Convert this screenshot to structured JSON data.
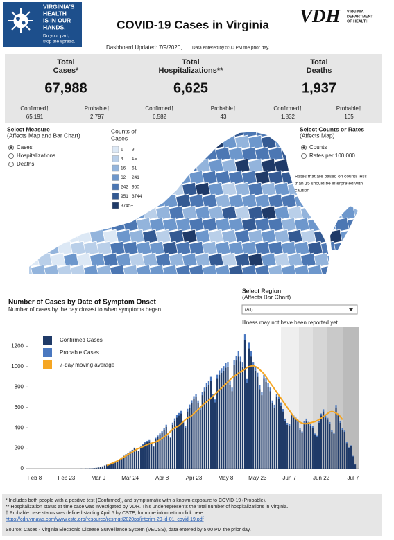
{
  "header": {
    "logo_lines": [
      "VIRGINIA'S",
      "HEALTH",
      "IS IN OUR",
      "HANDS."
    ],
    "logo_tagline": [
      "Do your part,",
      "stop the spread."
    ],
    "title": "COVID-19 Cases in Virginia",
    "agency_abbr": "VDH",
    "agency_name": [
      "VIRGINIA",
      "DEPARTMENT",
      "OF HEALTH"
    ]
  },
  "updated": {
    "label": "Dashboard Updated: 7/9/2020,",
    "note": "Data entered by 5:00 PM the prior day."
  },
  "totals": [
    {
      "label": [
        "Total",
        "Cases*"
      ],
      "value": "67,988",
      "confirmed_label": "Confirmed†",
      "confirmed": "65,191",
      "probable_label": "Probable†",
      "probable": "2,797"
    },
    {
      "label": [
        "Total",
        "Hospitalizations**"
      ],
      "value": "6,625",
      "confirmed_label": "Confirmed†",
      "confirmed": "6,582",
      "probable_label": "Probable†",
      "probable": "43"
    },
    {
      "label": [
        "Total",
        "Deaths"
      ],
      "value": "1,937",
      "confirmed_label": "Confirmed†",
      "confirmed": "1,832",
      "probable_label": "Probable†",
      "probable": "105"
    }
  ],
  "measure": {
    "title": "Select Measure",
    "subtitle": "(Affects Map and Bar Chart)",
    "options": [
      "Cases",
      "Hospitalizations",
      "Deaths"
    ],
    "selected": 0
  },
  "legend": {
    "title": [
      "Counts of",
      "Cases"
    ],
    "bins": [
      {
        "low": "1",
        "high": "3",
        "color": "#dce8f5"
      },
      {
        "low": "4",
        "high": "15",
        "color": "#b9cfe9"
      },
      {
        "low": "16",
        "high": "61",
        "color": "#93b4dc"
      },
      {
        "low": "62",
        "high": "241",
        "color": "#6d97cc"
      },
      {
        "low": "242",
        "high": "950",
        "color": "#4c77b3"
      },
      {
        "low": "951",
        "high": "3744",
        "color": "#345a93"
      },
      {
        "low": "3745+",
        "color": "#1f3a68"
      }
    ]
  },
  "rate": {
    "title": "Select Counts or Rates",
    "subtitle": "(Affects Map)",
    "options": [
      "Counts",
      "Rates per 100,000"
    ],
    "selected": 0,
    "note": [
      "Rates that are based on counts less",
      "than 15 should be interpreted with",
      "caution"
    ]
  },
  "region": {
    "title": "Select Region",
    "subtitle": "(Affects Bar Chart)",
    "value": "(All)"
  },
  "chart_data": {
    "type": "bar",
    "stacked": true,
    "title": "Number of Cases by Date of Symptom Onset",
    "subtitle": "Number of cases by the day closest to when symptoms began.",
    "note": "Illness may not have been reported yet.",
    "categories": [
      "Feb 8",
      null,
      null,
      null,
      null,
      null,
      null,
      null,
      null,
      null,
      null,
      null,
      null,
      null,
      null,
      "Feb 23",
      null,
      null,
      null,
      null,
      null,
      null,
      null,
      null,
      null,
      null,
      null,
      null,
      null,
      null,
      "Mar 9",
      null,
      null,
      null,
      null,
      null,
      null,
      null,
      null,
      null,
      null,
      null,
      null,
      null,
      null,
      "Mar 24",
      null,
      null,
      null,
      null,
      null,
      null,
      null,
      null,
      null,
      null,
      null,
      null,
      null,
      null,
      "Apr 8",
      null,
      null,
      null,
      null,
      null,
      null,
      null,
      null,
      null,
      null,
      null,
      null,
      null,
      null,
      "Apr 23",
      null,
      null,
      null,
      null,
      null,
      null,
      null,
      null,
      null,
      null,
      null,
      null,
      null,
      null,
      "May 8",
      null,
      null,
      null,
      null,
      null,
      null,
      null,
      null,
      null,
      null,
      null,
      null,
      null,
      null,
      "May 23",
      null,
      null,
      null,
      null,
      null,
      null,
      null,
      null,
      null,
      null,
      null,
      null,
      null,
      null,
      "Jun 7",
      null,
      null,
      null,
      null,
      null,
      null,
      null,
      null,
      null,
      null,
      null,
      null,
      null,
      null,
      "Jun 22",
      null,
      null,
      null,
      null,
      null,
      null,
      null,
      null,
      null,
      null,
      null,
      null,
      null,
      null,
      "Jul 7",
      null
    ],
    "series": [
      {
        "name": "Confirmed Cases",
        "color": "#1f3a68",
        "values": [
          0,
          0,
          0,
          0,
          0,
          0,
          0,
          0,
          0,
          0,
          0,
          0,
          0,
          0,
          0,
          0,
          0,
          0,
          0,
          0,
          0,
          0,
          1,
          0,
          2,
          1,
          3,
          4,
          6,
          8,
          12,
          18,
          22,
          30,
          38,
          45,
          52,
          60,
          70,
          82,
          95,
          110,
          125,
          140,
          150,
          165,
          180,
          200,
          190,
          170,
          210,
          230,
          250,
          260,
          270,
          240,
          215,
          290,
          310,
          330,
          350,
          380,
          410,
          320,
          300,
          430,
          470,
          500,
          520,
          540,
          450,
          400,
          560,
          600,
          640,
          680,
          700,
          640,
          580,
          720,
          760,
          800,
          820,
          860,
          700,
          650,
          880,
          920,
          940,
          960,
          990,
          1000,
          820,
          760,
          1020,
          1060,
          1100,
          1050,
          1000,
          1260,
          840,
          1180,
          1100,
          1000,
          960,
          900,
          780,
          720,
          880,
          850,
          800,
          760,
          640,
          600,
          700,
          680,
          620,
          560,
          470,
          430,
          420,
          520,
          500,
          480,
          460,
          380,
          350,
          450,
          470,
          440,
          420,
          400,
          330,
          310,
          450,
          520,
          560,
          500,
          480,
          440,
          360,
          340,
          600,
          520,
          450,
          380,
          360,
          250,
          200,
          220,
          120,
          40
        ]
      },
      {
        "name": "Probable Cases",
        "color": "#4a78c0",
        "values": [
          0,
          0,
          0,
          0,
          0,
          0,
          0,
          0,
          0,
          0,
          0,
          0,
          0,
          0,
          0,
          0,
          0,
          0,
          0,
          0,
          0,
          0,
          0,
          0,
          0,
          0,
          0,
          0,
          0,
          0,
          0,
          0,
          0,
          0,
          0,
          0,
          0,
          0,
          0,
          0,
          0,
          0,
          0,
          0,
          0,
          3,
          4,
          5,
          4,
          3,
          6,
          8,
          10,
          12,
          10,
          8,
          7,
          12,
          14,
          15,
          16,
          18,
          20,
          14,
          12,
          20,
          22,
          24,
          25,
          26,
          20,
          18,
          26,
          28,
          30,
          30,
          32,
          28,
          24,
          32,
          34,
          36,
          38,
          40,
          32,
          28,
          40,
          42,
          44,
          45,
          45,
          46,
          38,
          34,
          46,
          48,
          50,
          48,
          46,
          58,
          38,
          54,
          50,
          46,
          44,
          40,
          36,
          32,
          40,
          38,
          36,
          34,
          28,
          26,
          30,
          30,
          28,
          24,
          20,
          18,
          18,
          22,
          20,
          20,
          18,
          16,
          14,
          18,
          20,
          18,
          16,
          16,
          14,
          12,
          18,
          20,
          22,
          20,
          18,
          16,
          14,
          14,
          24,
          20,
          18,
          14,
          12,
          10,
          8,
          8,
          5,
          2
        ]
      },
      {
        "name": "7-day moving average",
        "color": "#f5a623",
        "type": "line",
        "values": [
          null,
          null,
          null,
          null,
          null,
          null,
          null,
          null,
          null,
          null,
          null,
          null,
          null,
          null,
          null,
          null,
          null,
          null,
          null,
          null,
          null,
          null,
          null,
          null,
          null,
          null,
          null,
          null,
          null,
          null,
          null,
          null,
          null,
          null,
          30,
          40,
          48,
          56,
          65,
          75,
          87,
          100,
          112,
          125,
          138,
          150,
          163,
          176,
          189,
          198,
          205,
          215,
          225,
          235,
          242,
          248,
          255,
          262,
          270,
          282,
          295,
          310,
          325,
          345,
          365,
          385,
          400,
          410,
          420,
          440,
          460,
          480,
          495,
          505,
          520,
          540,
          560,
          580,
          600,
          620,
          640,
          655,
          670,
          690,
          710,
          730,
          750,
          770,
          790,
          810,
          830,
          850,
          870,
          890,
          905,
          920,
          935,
          950,
          960,
          975,
          990,
          1000,
          1005,
          1010,
          1000,
          990,
          970,
          950,
          930,
          900,
          870,
          840,
          810,
          780,
          750,
          720,
          690,
          660,
          630,
          600,
          570,
          540,
          510,
          490,
          470,
          455,
          445,
          440,
          440,
          445,
          450,
          455,
          460,
          470,
          480,
          495,
          510,
          525,
          540,
          555,
          560,
          555,
          545,
          530,
          510,
          480,
          null,
          null,
          null,
          null,
          null,
          null
        ]
      }
    ],
    "ylim": [
      0,
      1400
    ],
    "yticks": [
      0,
      200,
      400,
      600,
      800,
      1000,
      1200
    ]
  },
  "footnotes": [
    "* Includes both people with a positive test (Confirmed), and symptomatic with a known exposure to COVID-19 (Probable).",
    "** Hospitalization status at time case was investigated by VDH. This underrepresents the total number of hospitalizations in Virginia.",
    "† Probable case status was defined starting April 5 by CSTE, for more information click here:"
  ],
  "footnote_link": "https://cdn.ymaws.com/www.cste.org/resource/resmgr/2020ps/interim-20-id-01_covid-19.pdf",
  "source": "Source:  Cases - Virginia Electronic Disease Surveillance System (VEDSS), data entered by 5:00 PM the prior day."
}
